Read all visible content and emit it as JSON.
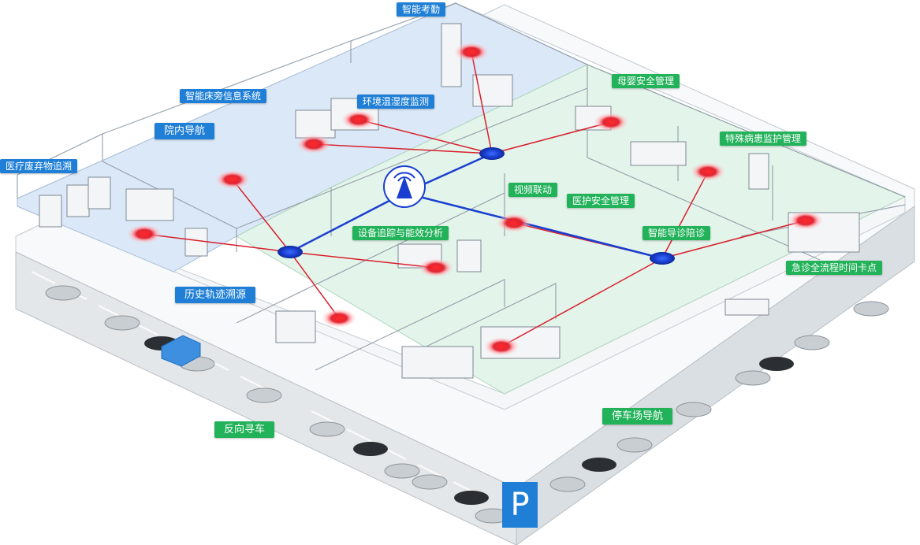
{
  "labels": {
    "attendance": "智能考勤",
    "bedside_info": "智能床旁信息系统",
    "env_monitor": "环境温湿度监测",
    "hospital_nav": "院内导航",
    "waste_trace": "医疗废弃物追溯",
    "history_trace": "历史轨迹溯源",
    "device_tracking": "设备追踪与能效分析",
    "video_link": "视频联动",
    "staff_safety": "医护安全管理",
    "guide": "智能导诊陪诊",
    "mother_baby": "母婴安全管理",
    "special_patient": "特殊病患监护管理",
    "emergency": "急诊全流程时间卡点",
    "reverse_car": "反向寻车",
    "parking_nav": "停车场导航",
    "parking_sign": "P"
  },
  "colors": {
    "blue_label": "#1f7fd6",
    "green_label": "#22b25a",
    "node_red": "#e21c2a",
    "hub_blue": "#1a3fd0",
    "zone_blue": "#dbe8f7",
    "zone_green": "#e3f4ea"
  },
  "icons": [
    "wifi-tower-icon",
    "parking-icon"
  ]
}
